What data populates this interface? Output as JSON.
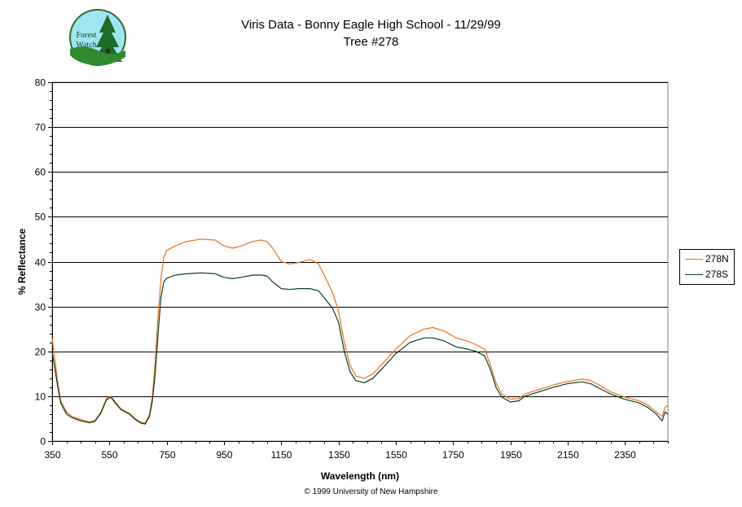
{
  "titles": {
    "line1": "Viris Data - Bonny Eagle High School - 11/29/99",
    "line2": "Tree #278"
  },
  "footer": "© 1999 University of New Hampshire",
  "logo": {
    "line1": "Forest",
    "line2": "Watch"
  },
  "colors": {
    "series_n": "#e8731e",
    "series_s": "#0b3d1f",
    "grid": "#000000"
  },
  "chart_data": {
    "type": "line",
    "title": "Viris Data - Bonny Eagle High School - 11/29/99 Tree #278",
    "xlabel": "Wavelength (nm)",
    "ylabel": "% Reflectance",
    "xlim": [
      350,
      2500
    ],
    "ylim": [
      0,
      80
    ],
    "x_ticks": [
      350,
      550,
      750,
      950,
      1150,
      1350,
      1550,
      1750,
      1950,
      2150,
      2350
    ],
    "y_ticks": [
      0,
      10,
      20,
      30,
      40,
      50,
      60,
      70,
      80
    ],
    "grid": "horizontal major",
    "legend": "right",
    "series": [
      {
        "name": "278N",
        "points": [
          [
            350,
            23
          ],
          [
            360,
            18
          ],
          [
            370,
            13
          ],
          [
            380,
            9
          ],
          [
            400,
            6.5
          ],
          [
            420,
            5.5
          ],
          [
            450,
            4.8
          ],
          [
            480,
            4.3
          ],
          [
            500,
            4.6
          ],
          [
            520,
            6.5
          ],
          [
            540,
            9.5
          ],
          [
            555,
            10
          ],
          [
            570,
            8.8
          ],
          [
            590,
            7.2
          ],
          [
            620,
            6.2
          ],
          [
            640,
            5
          ],
          [
            660,
            4.2
          ],
          [
            675,
            4
          ],
          [
            690,
            6
          ],
          [
            700,
            10
          ],
          [
            710,
            18
          ],
          [
            720,
            28
          ],
          [
            730,
            36
          ],
          [
            740,
            41
          ],
          [
            750,
            42.5
          ],
          [
            780,
            43.5
          ],
          [
            820,
            44.5
          ],
          [
            870,
            45
          ],
          [
            920,
            44.8
          ],
          [
            950,
            43.5
          ],
          [
            980,
            43
          ],
          [
            1010,
            43.5
          ],
          [
            1050,
            44.5
          ],
          [
            1080,
            44.8
          ],
          [
            1100,
            44.5
          ],
          [
            1120,
            43
          ],
          [
            1150,
            40
          ],
          [
            1180,
            39.5
          ],
          [
            1210,
            39.8
          ],
          [
            1250,
            40.5
          ],
          [
            1280,
            39.5
          ],
          [
            1300,
            37
          ],
          [
            1330,
            33
          ],
          [
            1350,
            29
          ],
          [
            1370,
            22
          ],
          [
            1390,
            17
          ],
          [
            1410,
            14.5
          ],
          [
            1440,
            14
          ],
          [
            1470,
            15
          ],
          [
            1500,
            17
          ],
          [
            1550,
            20.5
          ],
          [
            1600,
            23.5
          ],
          [
            1650,
            25
          ],
          [
            1680,
            25.3
          ],
          [
            1720,
            24.5
          ],
          [
            1760,
            23
          ],
          [
            1800,
            22.3
          ],
          [
            1830,
            21.5
          ],
          [
            1860,
            20.5
          ],
          [
            1880,
            17
          ],
          [
            1900,
            13
          ],
          [
            1920,
            10.5
          ],
          [
            1950,
            9.3
          ],
          [
            1980,
            9.5
          ],
          [
            2000,
            10.5
          ],
          [
            2050,
            11.5
          ],
          [
            2100,
            12.5
          ],
          [
            2150,
            13.3
          ],
          [
            2200,
            13.8
          ],
          [
            2230,
            13.5
          ],
          [
            2260,
            12.5
          ],
          [
            2300,
            11
          ],
          [
            2350,
            9.8
          ],
          [
            2400,
            9
          ],
          [
            2430,
            8
          ],
          [
            2460,
            6.5
          ],
          [
            2480,
            5.5
          ],
          [
            2490,
            7.5
          ],
          [
            2500,
            8
          ]
        ]
      },
      {
        "name": "278S",
        "points": [
          [
            350,
            20
          ],
          [
            360,
            16
          ],
          [
            370,
            12
          ],
          [
            380,
            8.5
          ],
          [
            400,
            6
          ],
          [
            420,
            5.2
          ],
          [
            450,
            4.5
          ],
          [
            480,
            4.1
          ],
          [
            500,
            4.4
          ],
          [
            520,
            6.2
          ],
          [
            540,
            9.2
          ],
          [
            555,
            9.8
          ],
          [
            570,
            8.5
          ],
          [
            590,
            7
          ],
          [
            620,
            6
          ],
          [
            640,
            4.8
          ],
          [
            660,
            4
          ],
          [
            675,
            3.8
          ],
          [
            690,
            5.5
          ],
          [
            700,
            9
          ],
          [
            710,
            15
          ],
          [
            720,
            24
          ],
          [
            730,
            32
          ],
          [
            740,
            35.5
          ],
          [
            750,
            36.3
          ],
          [
            780,
            37
          ],
          [
            820,
            37.3
          ],
          [
            870,
            37.5
          ],
          [
            920,
            37.3
          ],
          [
            950,
            36.5
          ],
          [
            980,
            36.2
          ],
          [
            1010,
            36.5
          ],
          [
            1050,
            37
          ],
          [
            1080,
            37
          ],
          [
            1100,
            36.8
          ],
          [
            1120,
            35.5
          ],
          [
            1150,
            34
          ],
          [
            1180,
            33.8
          ],
          [
            1210,
            34
          ],
          [
            1250,
            34
          ],
          [
            1280,
            33.5
          ],
          [
            1300,
            32
          ],
          [
            1330,
            29.5
          ],
          [
            1350,
            26.5
          ],
          [
            1370,
            20
          ],
          [
            1390,
            15.5
          ],
          [
            1410,
            13.5
          ],
          [
            1440,
            13
          ],
          [
            1470,
            14
          ],
          [
            1500,
            16
          ],
          [
            1550,
            19.5
          ],
          [
            1600,
            22
          ],
          [
            1650,
            23
          ],
          [
            1680,
            23
          ],
          [
            1720,
            22.3
          ],
          [
            1760,
            21
          ],
          [
            1800,
            20.5
          ],
          [
            1830,
            20
          ],
          [
            1860,
            19
          ],
          [
            1880,
            16
          ],
          [
            1900,
            12
          ],
          [
            1920,
            9.8
          ],
          [
            1950,
            8.7
          ],
          [
            1980,
            9
          ],
          [
            2000,
            10
          ],
          [
            2050,
            11
          ],
          [
            2100,
            12
          ],
          [
            2150,
            12.8
          ],
          [
            2200,
            13.2
          ],
          [
            2230,
            12.8
          ],
          [
            2260,
            11.8
          ],
          [
            2300,
            10.5
          ],
          [
            2350,
            9.3
          ],
          [
            2400,
            8.5
          ],
          [
            2430,
            7.5
          ],
          [
            2460,
            6
          ],
          [
            2480,
            4.5
          ],
          [
            2490,
            6.5
          ],
          [
            2500,
            6
          ]
        ]
      }
    ]
  }
}
